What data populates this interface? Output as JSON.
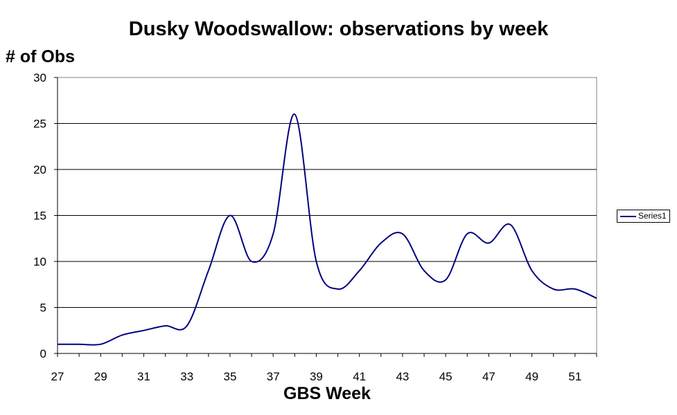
{
  "chart_data": {
    "type": "line",
    "title": "Dusky Woodswallow: observations by week",
    "xlabel": "GBS Week",
    "ylabel": "# of Obs",
    "xlim": [
      27,
      52
    ],
    "ylim": [
      0,
      30
    ],
    "yticks": [
      0,
      5,
      10,
      15,
      20,
      25,
      30
    ],
    "xticks": [
      27,
      29,
      31,
      33,
      35,
      37,
      39,
      41,
      43,
      45,
      47,
      49,
      51
    ],
    "grid": "horizontal",
    "legend": "right",
    "x": [
      27,
      28,
      29,
      30,
      31,
      32,
      33,
      34,
      35,
      36,
      37,
      38,
      39,
      40,
      41,
      42,
      43,
      44,
      45,
      46,
      47,
      48,
      49,
      50,
      51,
      52
    ],
    "series": [
      {
        "name": "Series1",
        "color": "#000080",
        "values": [
          1,
          1,
          1,
          2,
          2.5,
          3,
          3,
          9,
          15,
          10,
          13,
          26,
          10,
          7,
          9,
          12,
          13,
          9,
          8,
          13,
          12,
          14,
          9,
          7,
          7,
          6
        ]
      }
    ]
  }
}
